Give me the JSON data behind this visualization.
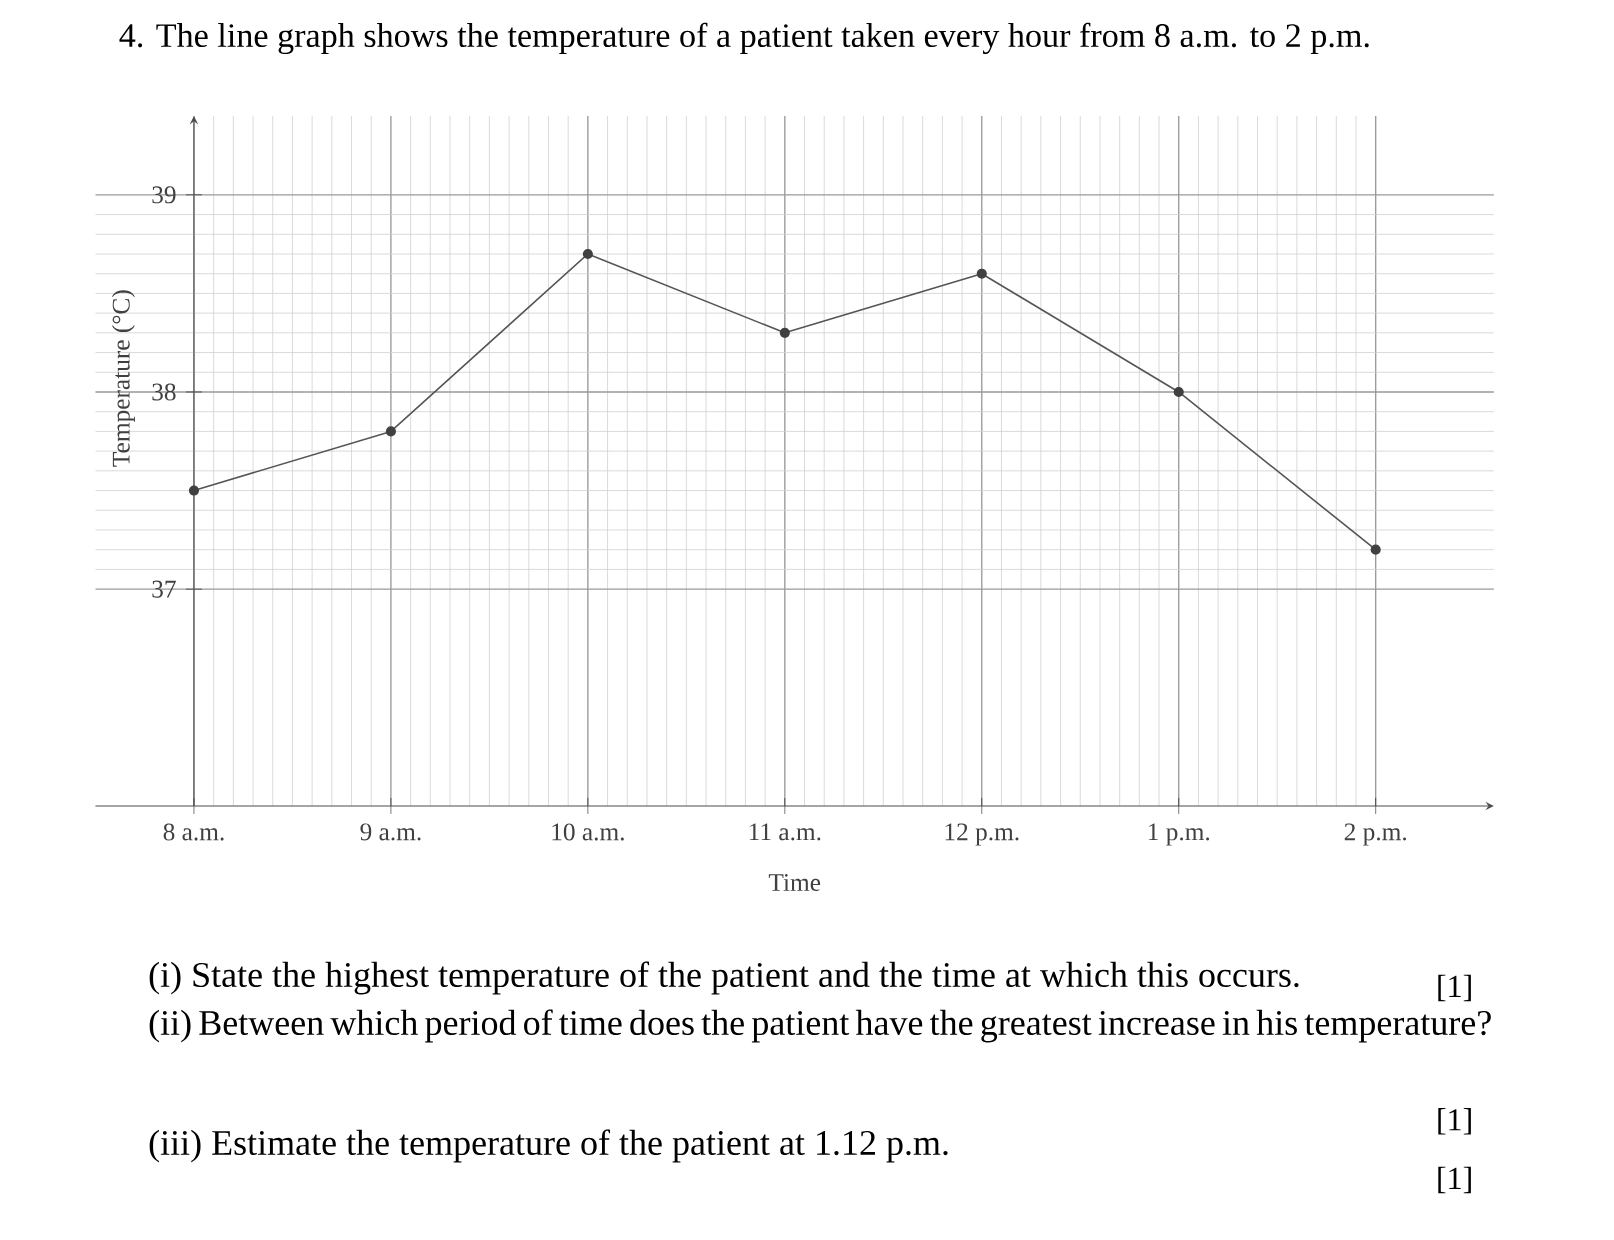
{
  "chart_data": {
    "type": "line",
    "title": "4. The line graph shows the temperature of a patient taken every hour from 8 a.m. to 2 p.m.",
    "xlabel": "Time",
    "ylabel": "Temperature (°C)",
    "categories": [
      "8 a.m.",
      "9 a.m.",
      "10 a.m.",
      "11 a.m.",
      "12 p.m.",
      "1 p.m.",
      "2 p.m."
    ],
    "values": [
      37.5,
      37.8,
      38.7,
      38.3,
      38.6,
      38.0,
      37.2
    ],
    "color": "#555555",
    "ylim": [
      35.9,
      39.4
    ],
    "yticks": [
      37,
      38,
      39
    ],
    "grid": true,
    "marker": "circle",
    "annotations": [
      "(i) State the highest temperature of the patient and the time at which this occurs.",
      "(ii) Between which period of time does the patient have the greatest increase in his temperature?",
      "(iii) Estimate the temperature of the patient at 1.12 p.m.",
      "[1]",
      "[1]",
      "[1]"
    ]
  }
}
